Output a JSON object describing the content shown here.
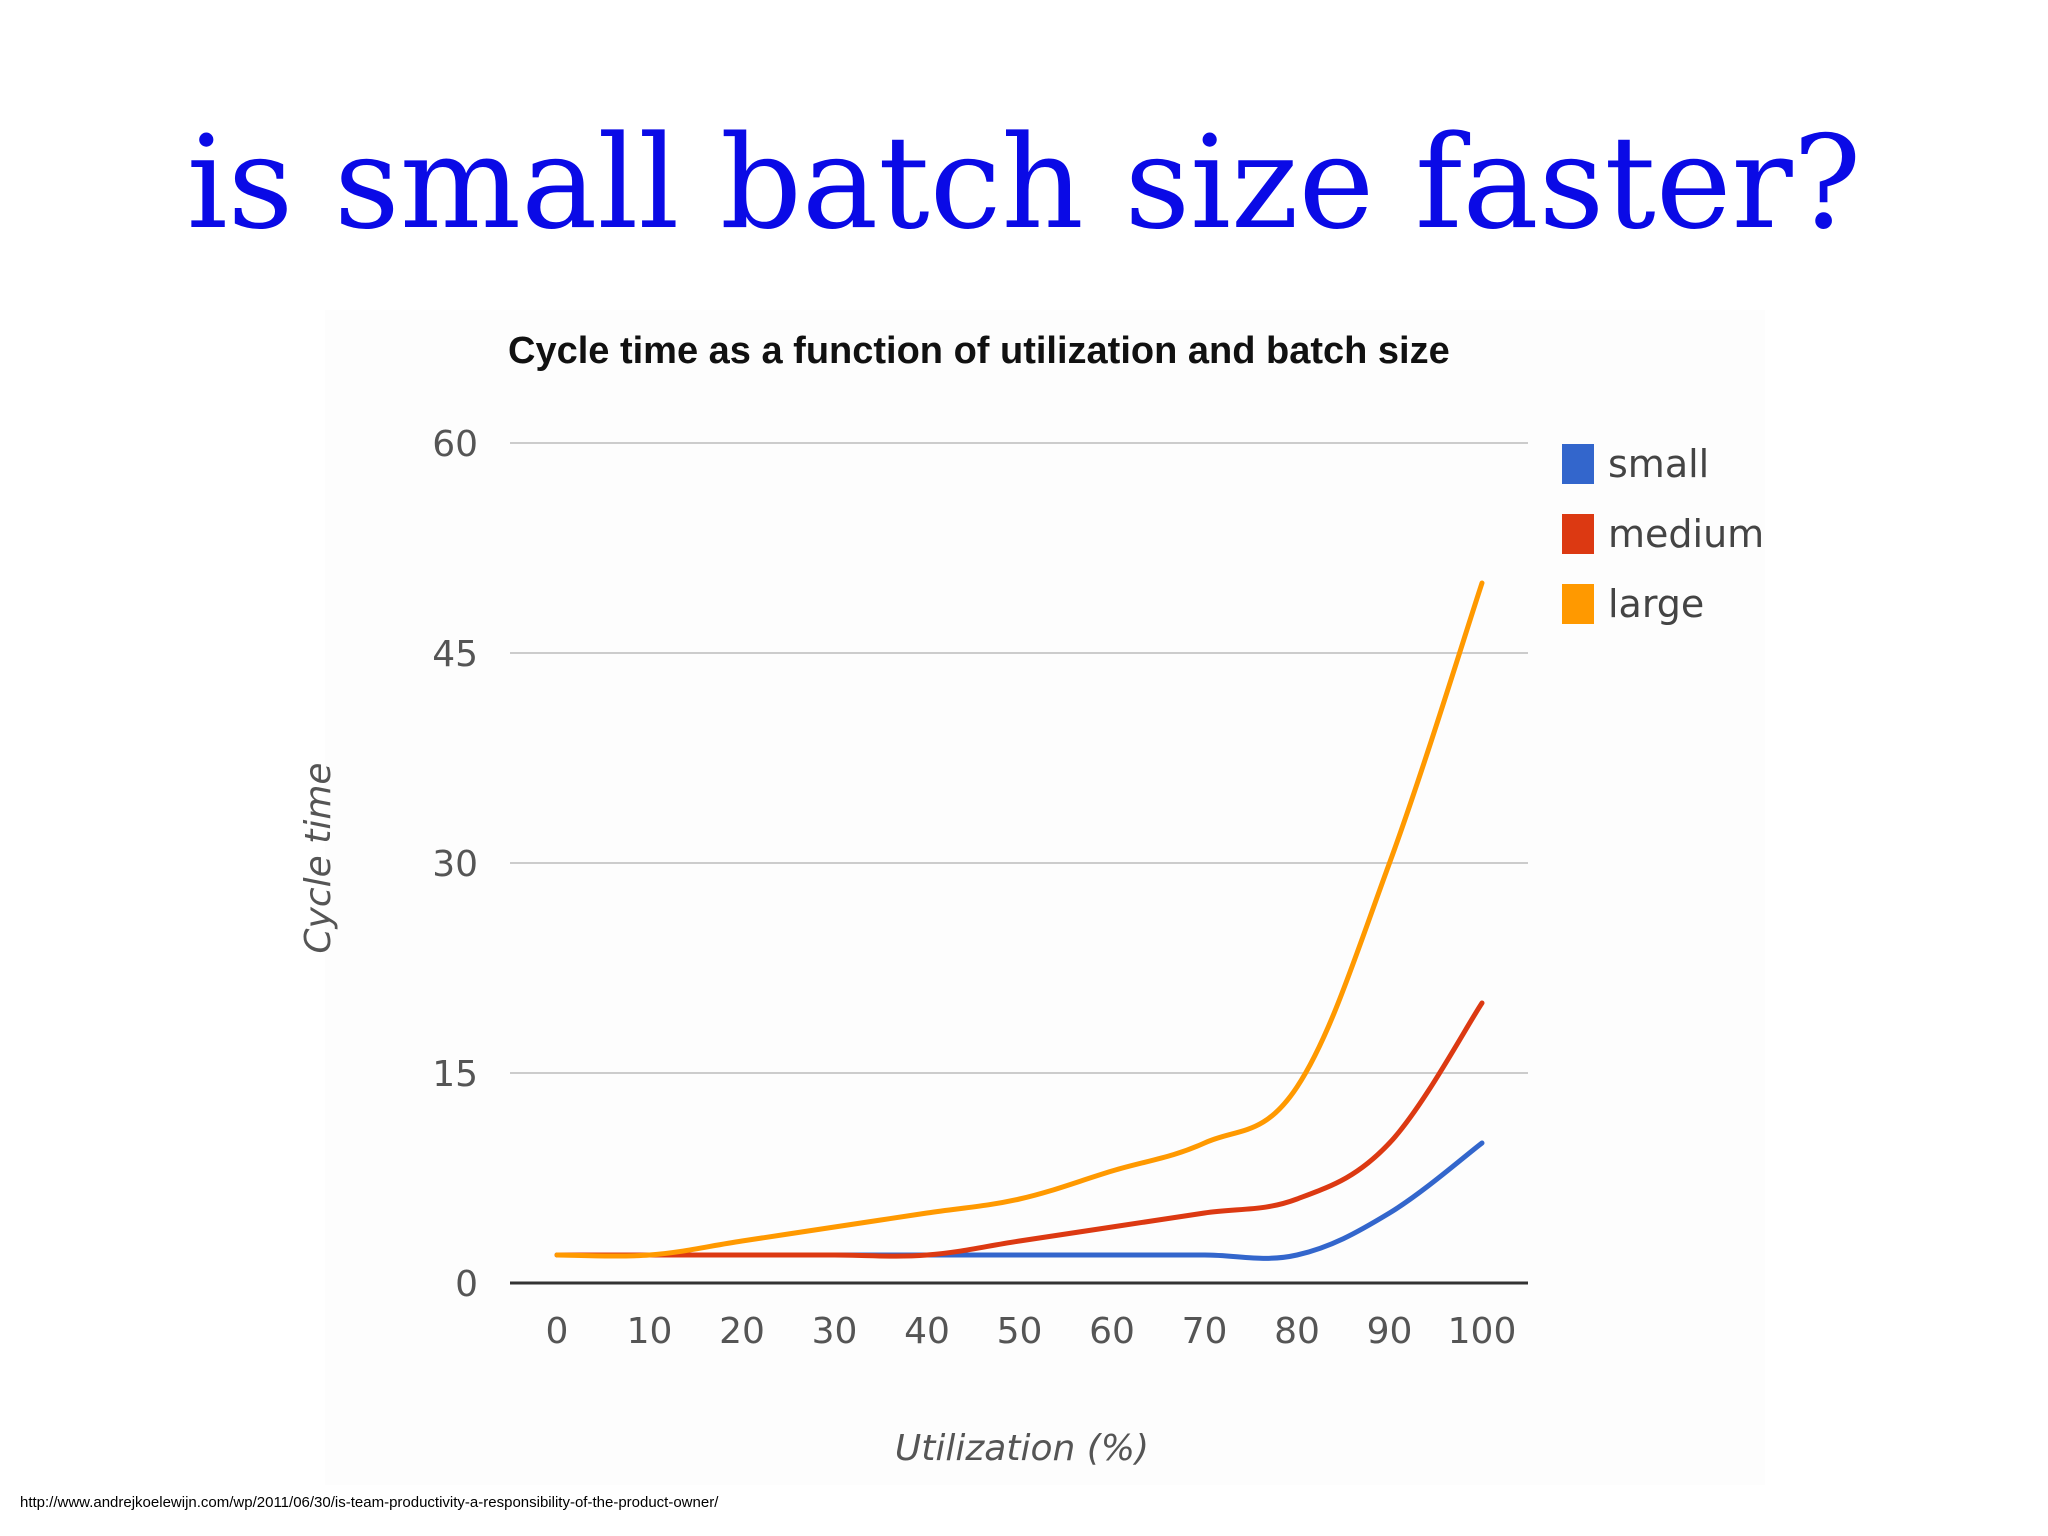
{
  "slide": {
    "title": "is small batch size faster?",
    "source_url": "http://www.andrejkoelewijn.com/wp/2011/06/30/is-team-productivity-a-responsibility-of-the-product-owner/"
  },
  "chart_data": {
    "type": "line",
    "title": "Cycle time as a function of utilization and batch size",
    "xlabel": "Utilization (%)",
    "ylabel": "Cycle time",
    "x": [
      0,
      10,
      20,
      30,
      40,
      50,
      60,
      70,
      80,
      90,
      100
    ],
    "xticks": [
      "0",
      "10",
      "20",
      "30",
      "40",
      "50",
      "60",
      "70",
      "80",
      "90",
      "100"
    ],
    "yticks": [
      "0",
      "15",
      "30",
      "45",
      "60"
    ],
    "ylim": [
      0,
      60
    ],
    "xlim": [
      0,
      100
    ],
    "grid": true,
    "legend_position": "right",
    "series": [
      {
        "name": "small",
        "color": "#3366cc",
        "values": [
          2,
          2,
          2,
          2,
          2,
          2,
          2,
          2,
          2,
          5,
          10
        ]
      },
      {
        "name": "medium",
        "color": "#dc3912",
        "values": [
          2,
          2,
          2,
          2,
          2,
          3,
          4,
          5,
          6,
          10,
          20
        ]
      },
      {
        "name": "large",
        "color": "#ff9900",
        "values": [
          2,
          2,
          3,
          4,
          5,
          6,
          8,
          10,
          14,
          30,
          50
        ]
      }
    ]
  }
}
